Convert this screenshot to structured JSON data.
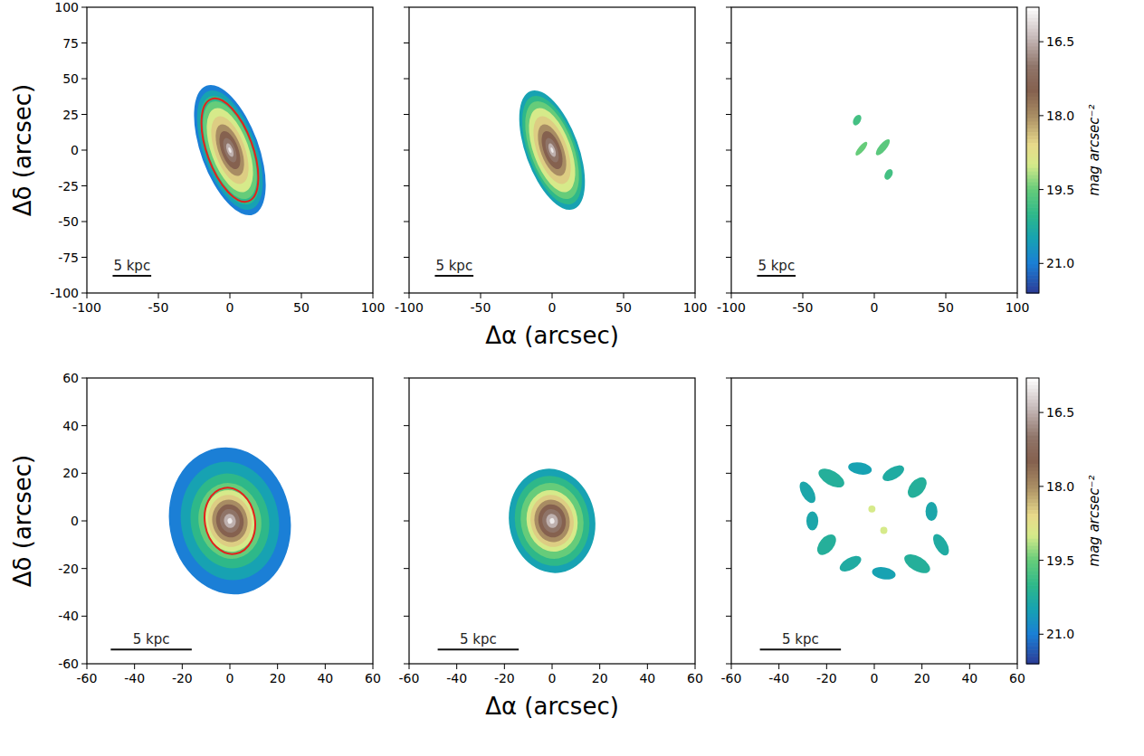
{
  "chart_data": [
    {
      "type": "heatmap",
      "xlim": [
        -100,
        100
      ],
      "ylim": [
        -100,
        100
      ],
      "xticks": [
        -100,
        -50,
        0,
        50,
        100
      ],
      "yticks": [
        -100,
        -75,
        -50,
        -25,
        0,
        25,
        50,
        75,
        100
      ],
      "ylabel": "Δδ (arcsec)",
      "isophotes": {
        "x": 0,
        "y": 0,
        "q": 0.42,
        "pa": 20,
        "mag": [
          16,
          16.5,
          17,
          17.5,
          18,
          18.5,
          19,
          19.5,
          20,
          20.5,
          21
        ],
        "a": [
          2,
          5,
          9,
          14,
          19,
          25,
          31,
          36,
          40,
          44,
          48
        ]
      },
      "ellipse": {
        "x": 0,
        "y": 0,
        "a": 38,
        "b": 16,
        "pa": 20,
        "color": "#e3211c"
      },
      "scale_bar": {
        "label": "5 kpc",
        "x": [
          -82,
          -55
        ],
        "y": -88
      }
    },
    {
      "type": "heatmap",
      "xlim": [
        -100,
        100
      ],
      "ylim": [
        -100,
        100
      ],
      "xticks": [
        -100,
        -50,
        0,
        50,
        100
      ],
      "yticks": [
        -100,
        -75,
        -50,
        -25,
        0,
        25,
        50,
        75,
        100
      ],
      "tick_labels": "x",
      "xlabel": "Δα (arcsec)",
      "isophotes": {
        "x": 0,
        "y": 0,
        "q": 0.42,
        "pa": 20,
        "mag": [
          16,
          16.5,
          17,
          17.5,
          18,
          18.5,
          19,
          19.5,
          20,
          20.5
        ],
        "a": [
          2,
          5,
          9,
          14,
          19,
          25,
          31,
          36,
          40,
          44
        ]
      },
      "scale_bar": {
        "label": "5 kpc",
        "x": [
          -82,
          -55
        ],
        "y": -88
      }
    },
    {
      "type": "heatmap",
      "xlim": [
        -100,
        100
      ],
      "ylim": [
        -100,
        100
      ],
      "xticks": [
        -100,
        -50,
        0,
        50,
        100
      ],
      "yticks": [
        -100,
        -75,
        -50,
        -25,
        0,
        25,
        50,
        75,
        100
      ],
      "tick_labels": "x",
      "residuals": [
        {
          "x": -12,
          "y": 21,
          "a": 4,
          "b": 2.5,
          "pa": -30,
          "mag": 19.8
        },
        {
          "x": -9,
          "y": 1,
          "a": 6,
          "b": 2,
          "pa": -40,
          "mag": 19.5
        },
        {
          "x": 6,
          "y": 2,
          "a": 7,
          "b": 2.5,
          "pa": -40,
          "mag": 19.6
        },
        {
          "x": 10,
          "y": -17,
          "a": 4,
          "b": 2.5,
          "pa": -30,
          "mag": 19.8
        }
      ],
      "colorbar": {
        "label": "mag arcsec⁻²",
        "range": [
          15.8,
          21.6
        ],
        "ticks": [
          16.5,
          {
            "value": 18,
            "label": "18.0"
          },
          19.5,
          {
            "value": 21,
            "label": "21.0"
          }
        ]
      },
      "scale_bar": {
        "label": "5 kpc",
        "x": [
          -82,
          -55
        ],
        "y": -88
      }
    },
    {
      "type": "heatmap",
      "xlim": [
        -60,
        60
      ],
      "ylim": [
        -60,
        60
      ],
      "xticks": [
        -60,
        -40,
        -20,
        0,
        20,
        40,
        60
      ],
      "yticks": [
        -60,
        -40,
        -20,
        0,
        20,
        40,
        60
      ],
      "ylabel": "Δδ (arcsec)",
      "isophotes": {
        "x": 0,
        "y": 0,
        "q": 0.82,
        "pa": 10,
        "mag": [
          16,
          16.5,
          17,
          17.5,
          18,
          18.5,
          19,
          19.5,
          20,
          20.5,
          21
        ],
        "a": [
          1.2,
          3,
          5,
          7,
          9,
          11,
          13,
          16,
          20,
          25,
          31
        ]
      },
      "ellipse": {
        "x": 0,
        "y": 0,
        "a": 14,
        "b": 10.5,
        "pa": 10,
        "color": "#e3211c"
      },
      "scale_bar": {
        "label": "5 kpc",
        "x": [
          -50,
          -16
        ],
        "y": -54
      }
    },
    {
      "type": "heatmap",
      "xlim": [
        -60,
        60
      ],
      "ylim": [
        -60,
        60
      ],
      "xticks": [
        -60,
        -40,
        -20,
        0,
        20,
        40,
        60
      ],
      "yticks": [
        -60,
        -40,
        -20,
        0,
        20,
        40,
        60
      ],
      "tick_labels": "x",
      "xlabel": "Δα (arcsec)",
      "isophotes": {
        "x": 0,
        "y": 0,
        "q": 0.82,
        "pa": 10,
        "mag": [
          16,
          16.5,
          17,
          17.5,
          18,
          18.5,
          19,
          19.5,
          20,
          20.5
        ],
        "a": [
          1.2,
          3,
          5,
          7,
          9,
          11,
          13,
          16,
          19,
          22
        ]
      },
      "scale_bar": {
        "label": "5 kpc",
        "x": [
          -48,
          -14
        ],
        "y": -54
      }
    },
    {
      "type": "heatmap",
      "xlim": [
        -60,
        60
      ],
      "ylim": [
        -60,
        60
      ],
      "xticks": [
        -60,
        -40,
        -20,
        0,
        20,
        40,
        60
      ],
      "yticks": [
        -60,
        -40,
        -20,
        0,
        20,
        40,
        60
      ],
      "tick_labels": "x",
      "residuals": [
        {
          "x": -28,
          "y": 12,
          "a": 5,
          "b": 2.5,
          "pa": 30,
          "mag": 20.4
        },
        {
          "x": -18,
          "y": 18,
          "a": 6,
          "b": 3,
          "pa": 60,
          "mag": 20.2
        },
        {
          "x": -6,
          "y": 22,
          "a": 5,
          "b": 2.5,
          "pa": 80,
          "mag": 20.5
        },
        {
          "x": 8,
          "y": 20,
          "a": 5,
          "b": 2.5,
          "pa": -60,
          "mag": 20.3
        },
        {
          "x": 18,
          "y": 14,
          "a": 5,
          "b": 3,
          "pa": -40,
          "mag": 20.2
        },
        {
          "x": 24,
          "y": 4,
          "a": 4,
          "b": 2.5,
          "pa": 0,
          "mag": 20.4
        },
        {
          "x": 28,
          "y": -10,
          "a": 5,
          "b": 2.5,
          "pa": 30,
          "mag": 20.3
        },
        {
          "x": 18,
          "y": -18,
          "a": 6,
          "b": 3,
          "pa": 60,
          "mag": 20.2
        },
        {
          "x": 4,
          "y": -22,
          "a": 5,
          "b": 2.5,
          "pa": 80,
          "mag": 20.5
        },
        {
          "x": -10,
          "y": -18,
          "a": 5,
          "b": 2.5,
          "pa": -60,
          "mag": 20.3
        },
        {
          "x": -20,
          "y": -10,
          "a": 5,
          "b": 3,
          "pa": -40,
          "mag": 20.2
        },
        {
          "x": -26,
          "y": 0,
          "a": 4,
          "b": 2.5,
          "pa": 0,
          "mag": 20.4
        },
        {
          "x": -1,
          "y": 5,
          "a": 1.5,
          "b": 1.5,
          "pa": 0,
          "mag": 19
        },
        {
          "x": 4,
          "y": -4,
          "a": 1.5,
          "b": 1.5,
          "pa": 0,
          "mag": 19
        }
      ],
      "colorbar": {
        "label": "mag arcsec⁻²",
        "range": [
          15.8,
          21.6
        ],
        "ticks": [
          16.5,
          {
            "value": 18,
            "label": "18.0"
          },
          19.5,
          {
            "value": 21,
            "label": "21.0"
          }
        ]
      },
      "scale_bar": {
        "label": "5 kpc",
        "x": [
          -48,
          -14
        ],
        "y": -54
      }
    }
  ]
}
